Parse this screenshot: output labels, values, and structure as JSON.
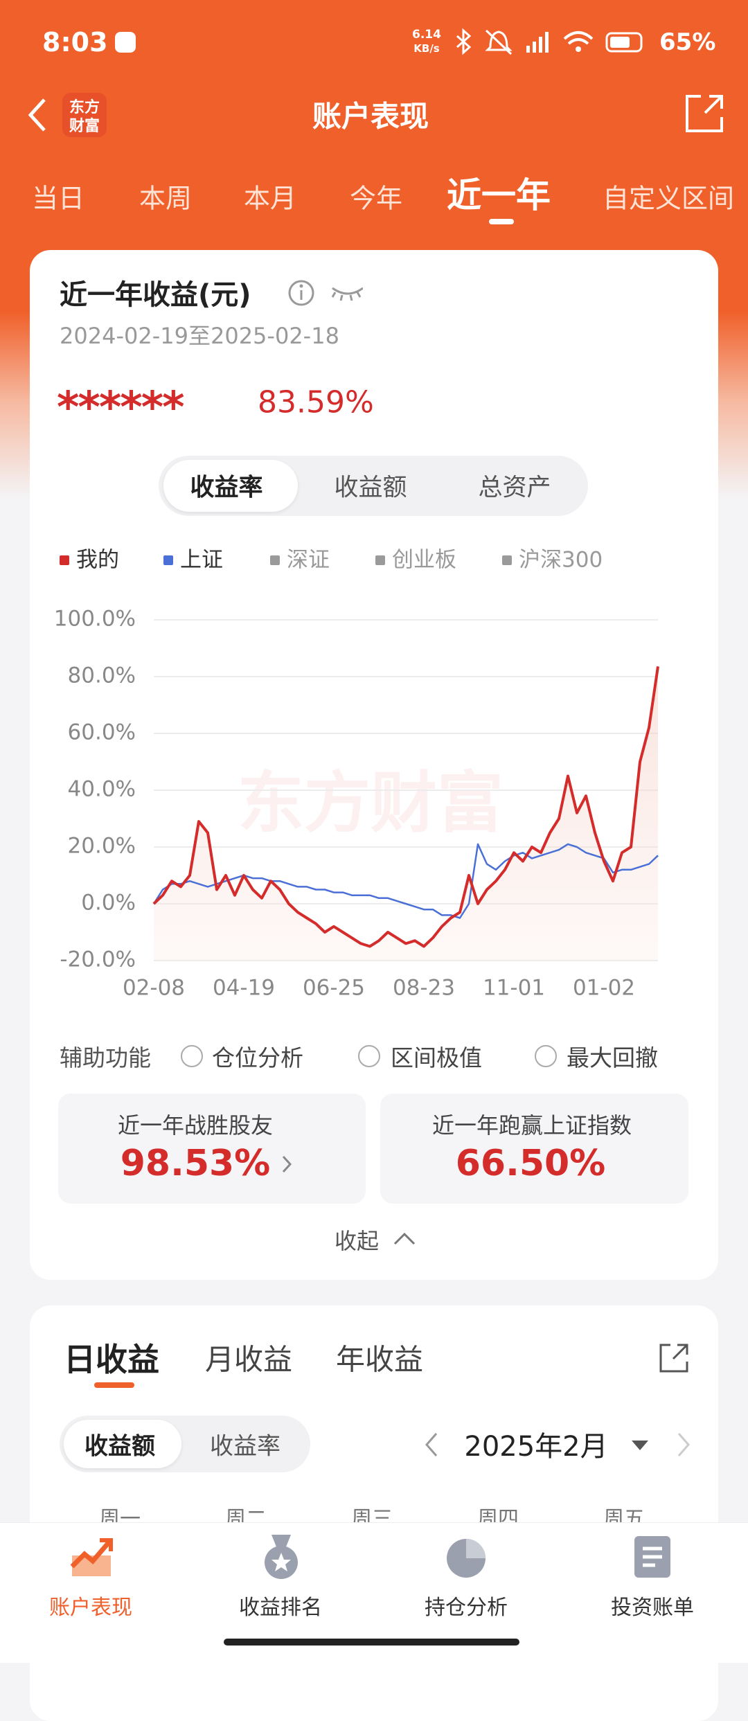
{
  "status_bar": {
    "time": "8:03",
    "net_speed": "6.14",
    "net_unit": "KB/s",
    "battery": "65%"
  },
  "nav": {
    "title": "账户表现",
    "logo_top": "东方",
    "logo_bottom": "财富"
  },
  "period_tabs": [
    "当日",
    "本周",
    "本月",
    "今年",
    "近一年",
    "自定义区间"
  ],
  "summary": {
    "title": "近一年收益(元)",
    "date_range": "2024-02-19至2025-02-18",
    "amount": "******",
    "return_rate": "83.59%"
  },
  "metric_tabs": [
    "收益率",
    "收益额",
    "总资产"
  ],
  "chart_data": {
    "type": "line",
    "watermark": "东方财富",
    "categories": [
      "02-08",
      null,
      null,
      null,
      null,
      null,
      null,
      null,
      null,
      null,
      "04-19",
      null,
      null,
      null,
      null,
      null,
      null,
      null,
      null,
      null,
      "06-25",
      null,
      null,
      null,
      null,
      null,
      null,
      null,
      null,
      null,
      "08-23",
      null,
      null,
      null,
      null,
      null,
      null,
      null,
      null,
      null,
      "11-01",
      null,
      null,
      null,
      null,
      null,
      null,
      null,
      null,
      null,
      "01-02",
      null,
      null,
      null,
      null,
      null,
      null
    ],
    "series": [
      {
        "name": "我的",
        "color": "#d42b2b",
        "values": [
          0,
          3,
          8,
          6,
          10,
          29,
          25,
          5,
          10,
          3,
          10,
          5,
          2,
          8,
          5,
          0,
          -3,
          -5,
          -7,
          -10,
          -8,
          -10,
          -12,
          -14,
          -15,
          -13,
          -10,
          -12,
          -14,
          -13,
          -15,
          -12,
          -8,
          -5,
          -3,
          10,
          0,
          5,
          8,
          12,
          18,
          15,
          20,
          18,
          25,
          30,
          45,
          32,
          38,
          25,
          15,
          8,
          18,
          20,
          50,
          62,
          83.59
        ]
      },
      {
        "name": "上证",
        "color": "#4a6fd6",
        "values": [
          0,
          5,
          7,
          7,
          8,
          7,
          6,
          7,
          8,
          9,
          10,
          9,
          9,
          8,
          8,
          7,
          6,
          6,
          5,
          5,
          4,
          4,
          3,
          3,
          3,
          2,
          2,
          1,
          0,
          -1,
          -2,
          -2,
          -4,
          -4,
          -5,
          0,
          21,
          14,
          12,
          15,
          17,
          18,
          16,
          17,
          18,
          19,
          21,
          20,
          18,
          17,
          16,
          11,
          12,
          12,
          13,
          14,
          17
        ]
      }
    ],
    "inactive_legend": [
      {
        "name": "深证",
        "color": "#9a9a9a"
      },
      {
        "name": "创业板",
        "color": "#9a9a9a"
      },
      {
        "name": "沪深300",
        "color": "#9a9a9a"
      }
    ],
    "ylim": [
      -20,
      100
    ],
    "yticks": [
      {
        "value": 100,
        "label": "100.0%"
      },
      {
        "value": 80,
        "label": "80.0%"
      },
      {
        "value": 60,
        "label": "60.0%"
      },
      {
        "value": 40,
        "label": "40.0%"
      },
      {
        "value": 20,
        "label": "20.0%"
      },
      {
        "value": 0,
        "label": "0.0%"
      },
      {
        "value": -20,
        "label": "-20.0%"
      }
    ],
    "grid": true
  },
  "tools": {
    "label": "辅助功能",
    "options": [
      "仓位分析",
      "区间极值",
      "最大回撤"
    ]
  },
  "stats": [
    {
      "label": "近一年战胜股友",
      "value": "98.53%"
    },
    {
      "label": "近一年跑赢上证指数",
      "value": "66.50%"
    }
  ],
  "collapse": "收起",
  "earnings_tabs": [
    "日收益",
    "月收益",
    "年收益"
  ],
  "earnings_modes": [
    "收益额",
    "收益率"
  ],
  "month": "2025年2月",
  "weekdays": [
    "周一",
    "周二",
    "周三",
    "周四",
    "周五"
  ],
  "bottom_nav": [
    "账户表现",
    "收益排名",
    "持仓分析",
    "投资账单"
  ]
}
